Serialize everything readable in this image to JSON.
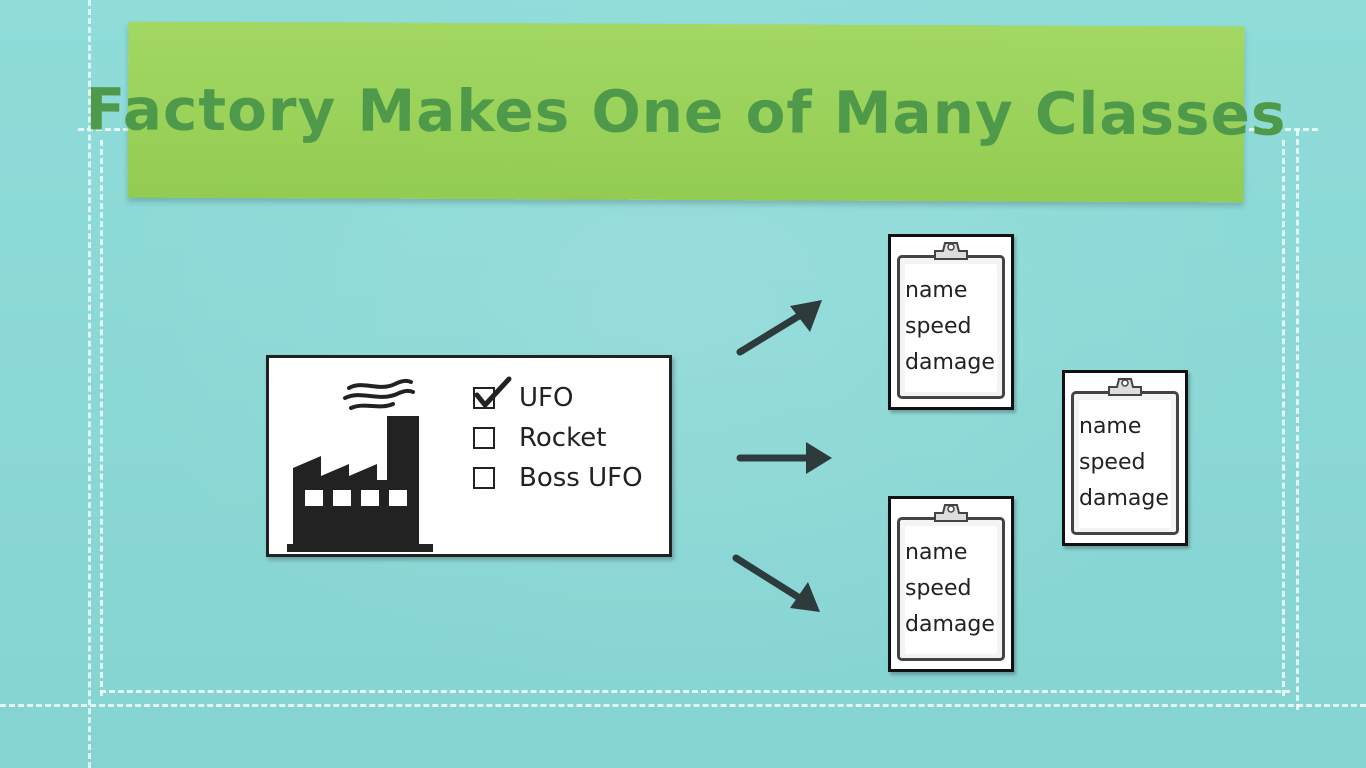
{
  "title": "Factory Makes One of Many Classes",
  "factory": {
    "options": [
      {
        "label": "UFO",
        "checked": true
      },
      {
        "label": "Rocket",
        "checked": false
      },
      {
        "label": "Boss UFO",
        "checked": false
      }
    ]
  },
  "clipboards": [
    {
      "lines": [
        "name",
        "speed",
        "damage"
      ]
    },
    {
      "lines": [
        "name",
        "speed",
        "damage"
      ]
    },
    {
      "lines": [
        "name",
        "speed",
        "damage"
      ]
    }
  ],
  "colors": {
    "background": "#8ad8d6",
    "banner": "#9ad45a",
    "title_text": "#4f9a4a",
    "ink": "#222222"
  },
  "icons": [
    "factory-icon",
    "checkmark-icon",
    "arrow-icon",
    "clipboard-icon"
  ]
}
